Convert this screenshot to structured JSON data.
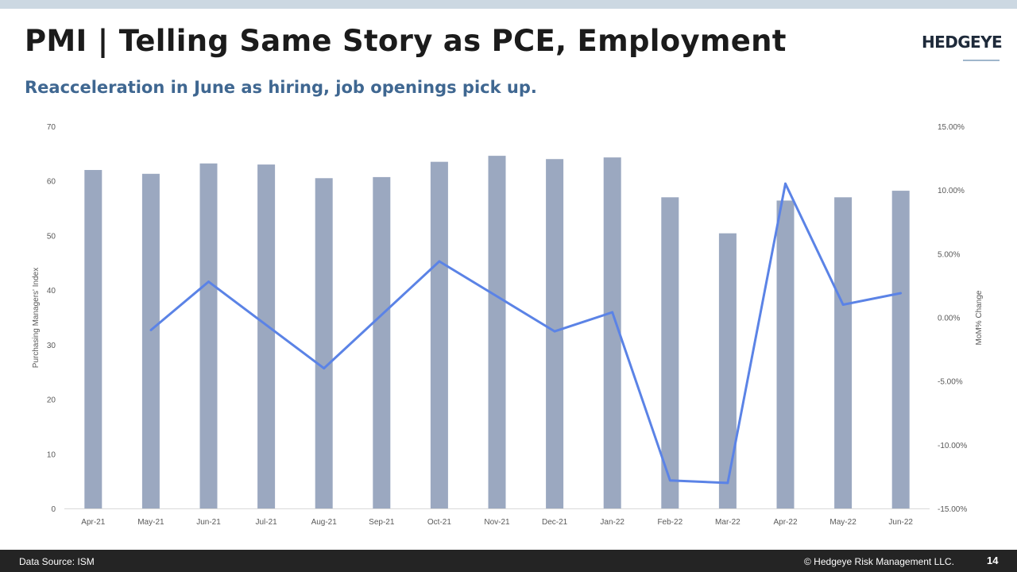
{
  "slide": {
    "title": "PMI | Telling Same Story as PCE, Employment",
    "subtitle": "Reacceleration in June as hiring, job openings pick up.",
    "logo_text": "HEDGEYE",
    "source": "Data Source: ISM",
    "copyright": "© Hedgeye Risk Management LLC.",
    "page_number": "14"
  },
  "colors": {
    "bar": "#9ba8c0",
    "line": "#5b83e6",
    "title": "#1b1b1b",
    "subtitle": "#3f6791",
    "footer_bg": "#242424",
    "top_strip": "#ccd8e2"
  },
  "chart_data": {
    "type": "bar",
    "categories": [
      "Apr-21",
      "May-21",
      "Jun-21",
      "Jul-21",
      "Aug-21",
      "Sep-21",
      "Oct-21",
      "Nov-21",
      "Dec-21",
      "Jan-22",
      "Feb-22",
      "Mar-22",
      "Apr-22",
      "May-22",
      "Jun-22"
    ],
    "series": [
      {
        "type": "bar",
        "axis": "left",
        "values": [
          62.0,
          61.3,
          63.2,
          63.0,
          60.5,
          60.7,
          63.5,
          64.6,
          64.0,
          64.3,
          57.0,
          50.4,
          56.4,
          57.0,
          58.2
        ]
      },
      {
        "type": "line",
        "axis": "right",
        "values": [
          null,
          -1.0,
          2.8,
          null,
          -4.0,
          null,
          4.4,
          null,
          -1.1,
          0.4,
          -12.8,
          -13.0,
          10.5,
          1.0,
          1.9
        ]
      }
    ],
    "ylabel": "Purchasing Managers' Index",
    "y2label": "MoM% Change",
    "ylim": [
      0,
      70
    ],
    "y2lim": [
      -15,
      15
    ],
    "yticks": [
      0,
      10,
      20,
      30,
      40,
      50,
      60,
      70
    ],
    "y2ticks": [
      "-15.00%",
      "-10.00%",
      "-5.00%",
      "0.00%",
      "5.00%",
      "10.00%",
      "15.00%"
    ],
    "y2tick_values": [
      -15,
      -10,
      -5,
      0,
      5,
      10,
      15
    ],
    "grid": false
  }
}
